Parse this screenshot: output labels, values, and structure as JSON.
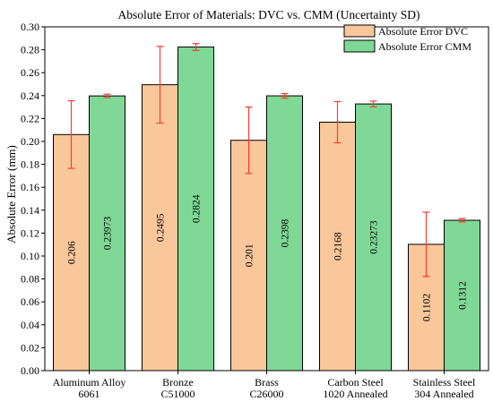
{
  "chart_data": {
    "type": "bar",
    "title": "Absolute Error of Materials: DVC vs. CMM (Uncertainty SD)",
    "xlabel": "",
    "ylabel": "Absolute Error (mm)",
    "ylim": [
      0,
      0.3
    ],
    "yticks": [
      "0.00",
      "0.02",
      "0.04",
      "0.06",
      "0.08",
      "0.10",
      "0.12",
      "0.14",
      "0.16",
      "0.18",
      "0.20",
      "0.22",
      "0.24",
      "0.26",
      "0.28",
      "0.30"
    ],
    "categories": [
      [
        "Aluminum Alloy",
        "6061"
      ],
      [
        "Bronze",
        "C51000"
      ],
      [
        "Brass",
        "C26000"
      ],
      [
        "Carbon Steel",
        "1020 Annealed"
      ],
      [
        "Stainless Steel",
        "304 Annealed"
      ]
    ],
    "series": [
      {
        "name": "Absolute Error DVC",
        "color": "#f9c79a",
        "values": [
          0.206,
          0.2495,
          0.201,
          0.2168,
          0.1102
        ],
        "labels": [
          "0.206",
          "0.2495",
          "0.201",
          "0.2168",
          "0.1102"
        ],
        "err": [
          0.0295,
          0.0335,
          0.029,
          0.018,
          0.028
        ]
      },
      {
        "name": "Absolute Error CMM",
        "color": "#7fd896",
        "values": [
          0.23973,
          0.2824,
          0.2398,
          0.23273,
          0.1312
        ],
        "labels": [
          "0.23973",
          "0.2824",
          "0.2398",
          "0.23273",
          "0.1312"
        ],
        "err": [
          0.0015,
          0.003,
          0.002,
          0.0025,
          0.0015
        ]
      }
    ],
    "error_bar_color": "#ff3b30",
    "legend_position": "top-right",
    "grid": false
  }
}
